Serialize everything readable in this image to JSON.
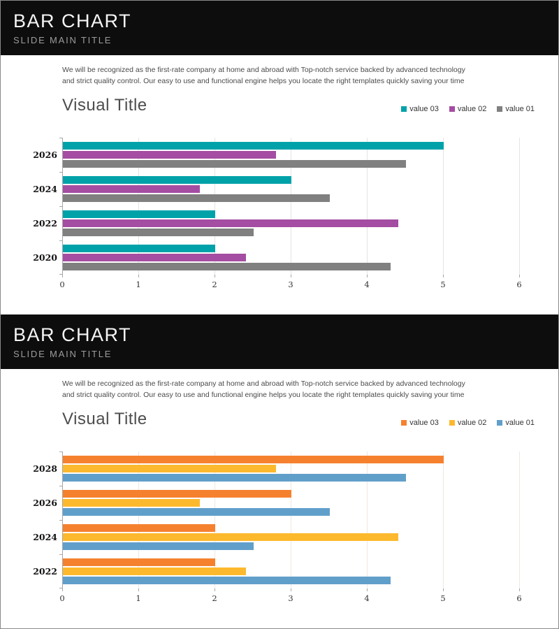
{
  "slides": [
    {
      "header": {
        "title": "BAR CHART",
        "subtitle": "SLIDE MAIN TITLE"
      },
      "body_text": "We will be recognized as the first-rate company at home and abroad with Top-notch service backed by advanced  technology and strict quality control. Our easy to use and functional engine helps you locate the right templates quickly saving your time",
      "visual_title": "Visual Title"
    },
    {
      "header": {
        "title": "BAR CHART",
        "subtitle": "SLIDE MAIN TITLE"
      },
      "body_text": "We will be recognized as the first-rate company at home and abroad with Top-notch service backed by advanced  technology and strict quality control. Our easy to use and functional engine helps you locate the right templates quickly saving your time",
      "visual_title": "Visual Title"
    }
  ],
  "chart_data": [
    {
      "type": "bar",
      "orientation": "horizontal",
      "title": "Visual Title",
      "categories": [
        "2026",
        "2024",
        "2022",
        "2020"
      ],
      "series": [
        {
          "name": "value 03",
          "color": "#00A2AA",
          "values": [
            5.0,
            3.0,
            2.0,
            2.0
          ]
        },
        {
          "name": "value 02",
          "color": "#A44DA2",
          "values": [
            2.8,
            1.8,
            4.4,
            2.4
          ]
        },
        {
          "name": "value 01",
          "color": "#808080",
          "values": [
            4.5,
            3.5,
            2.5,
            4.3
          ]
        }
      ],
      "xlim": [
        0,
        6
      ],
      "xticks": [
        0,
        1,
        2,
        3,
        4,
        5,
        6
      ],
      "grid": true,
      "grid_color": "#e4e4e4",
      "legend_position": "top-right"
    },
    {
      "type": "bar",
      "orientation": "horizontal",
      "title": "Visual Title",
      "categories": [
        "2028",
        "2026",
        "2024",
        "2022"
      ],
      "series": [
        {
          "name": "value 03",
          "color": "#F5812F",
          "values": [
            5.0,
            3.0,
            2.0,
            2.0
          ]
        },
        {
          "name": "value 02",
          "color": "#FDB92D",
          "values": [
            2.8,
            1.8,
            4.4,
            2.4
          ]
        },
        {
          "name": "value 01",
          "color": "#619FCB",
          "values": [
            4.5,
            3.5,
            2.5,
            4.3
          ]
        }
      ],
      "xlim": [
        0,
        6
      ],
      "xticks": [
        0,
        1,
        2,
        3,
        4,
        5,
        6
      ],
      "grid": true,
      "grid_color": "#efe8e0",
      "legend_position": "top-right"
    }
  ]
}
